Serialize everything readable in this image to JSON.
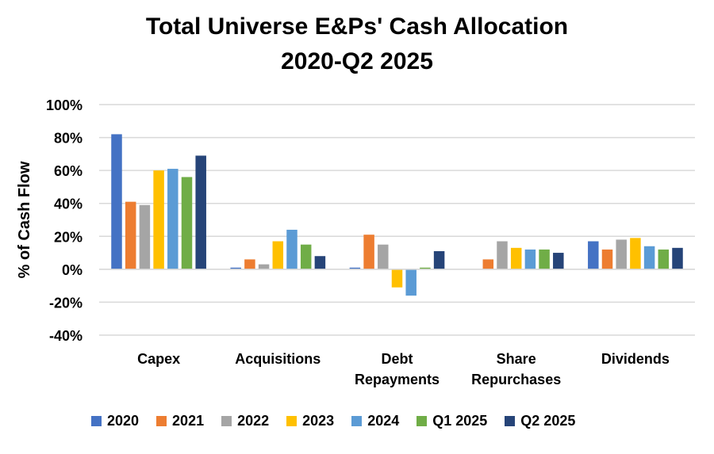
{
  "chart_data": {
    "type": "bar",
    "title": "Total Universe E&Ps' Cash Allocation",
    "subtitle": "2020-Q2 2025",
    "ylabel": "% of Cash Flow",
    "xlabel": "",
    "ylim": [
      -40,
      100
    ],
    "yticks": [
      -40,
      -20,
      0,
      20,
      40,
      60,
      80,
      100
    ],
    "ytick_labels": [
      "-40%",
      "-20%",
      "0%",
      "20%",
      "40%",
      "60%",
      "80%",
      "100%"
    ],
    "grid": true,
    "legend_position": "bottom",
    "categories": [
      [
        "Capex"
      ],
      [
        "Acquisitions"
      ],
      [
        "Debt",
        "Repayments"
      ],
      [
        "Share",
        "Repurchases"
      ],
      [
        "Dividends"
      ]
    ],
    "series": [
      {
        "name": "2020",
        "color": "#4472C4",
        "values": [
          82,
          1,
          1,
          0,
          17
        ]
      },
      {
        "name": "2021",
        "color": "#ED7D31",
        "values": [
          41,
          6,
          21,
          6,
          12
        ]
      },
      {
        "name": "2022",
        "color": "#A5A5A5",
        "values": [
          39,
          3,
          15,
          17,
          18
        ]
      },
      {
        "name": "2023",
        "color": "#FFC000",
        "values": [
          60,
          17,
          -11,
          13,
          19
        ]
      },
      {
        "name": "2024",
        "color": "#5B9BD5",
        "values": [
          61,
          24,
          -16,
          12,
          14
        ]
      },
      {
        "name": "Q1 2025",
        "color": "#70AD47",
        "values": [
          56,
          15,
          1,
          12,
          12
        ]
      },
      {
        "name": "Q2 2025",
        "color": "#264478",
        "values": [
          69,
          8,
          11,
          10,
          13
        ]
      }
    ]
  }
}
